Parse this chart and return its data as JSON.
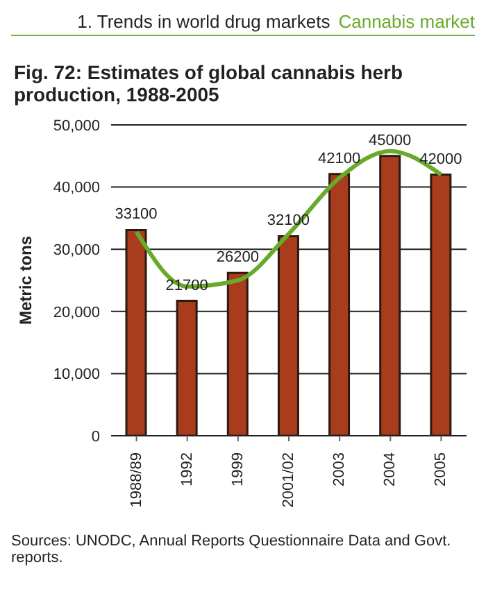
{
  "chart_data": {
    "type": "bar",
    "title": "Fig. 72: Estimates of global cannabis herb production, 1988-2005",
    "ylabel": "Metric tons",
    "annotations": [
      "1. Trends in world drug markets",
      "Cannabis market",
      "Sources: UNODC, Annual Reports Questionnaire Data and Govt. reports."
    ],
    "categories": [
      "1988/89",
      "1992",
      "1999",
      "2001/02",
      "2003",
      "2004",
      "2005"
    ],
    "series": [
      {
        "color": "#a83c1c",
        "values": [
          33100,
          21700,
          26200,
          32100,
          42100,
          45000,
          42000
        ],
        "value_labels": [
          "33100",
          "21700",
          "26200",
          "32100",
          "42100",
          "45000",
          "42000"
        ]
      },
      {
        "type": "line",
        "color": "#6aaa2a",
        "values": [
          32800,
          24000,
          25000,
          32500,
          41500,
          45800,
          42000
        ]
      }
    ],
    "ylim": [
      0,
      50000
    ],
    "yticks": [
      0,
      {
        "value": 10000,
        "label": "10,000"
      },
      {
        "value": 20000,
        "label": "20,000"
      },
      {
        "value": 30000,
        "label": "30,000"
      },
      {
        "value": 40000,
        "label": "40,000"
      },
      {
        "value": 50000,
        "label": "50,000"
      }
    ],
    "grid": "y",
    "legend": false,
    "marker": "none"
  }
}
